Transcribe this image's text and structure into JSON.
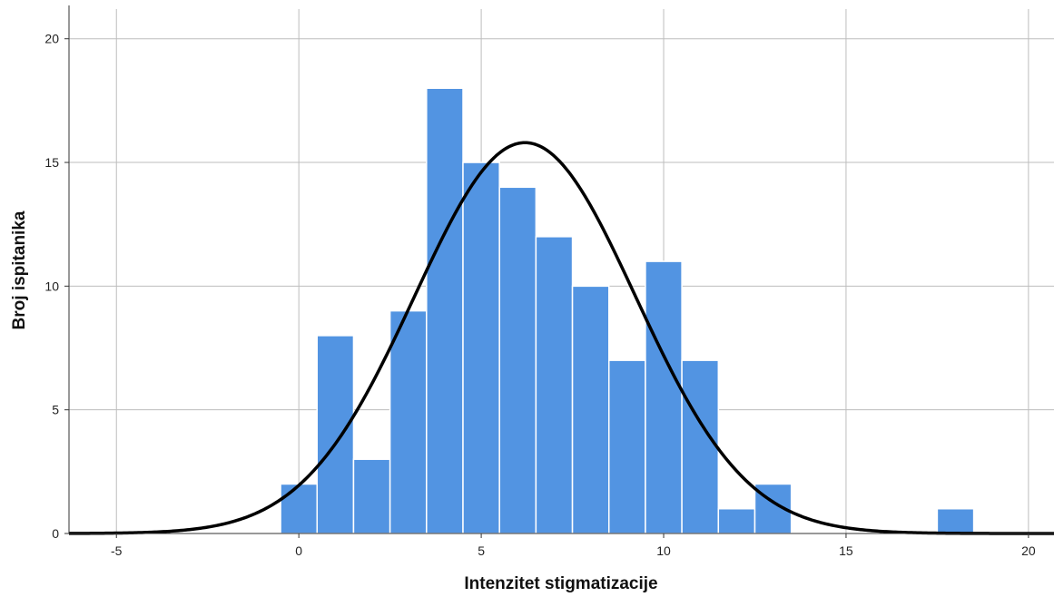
{
  "chart_data": {
    "type": "bar",
    "subtype": "histogram",
    "title": "",
    "xlabel": "Intenzitet stigmatizacije",
    "ylabel": "Broj ispitanika",
    "xlim": [
      -6.3,
      20.7
    ],
    "ylim": [
      0,
      21.2
    ],
    "x_ticks": [
      -5,
      0,
      5,
      10,
      15,
      20
    ],
    "y_ticks": [
      0,
      5,
      10,
      15,
      20
    ],
    "grid": true,
    "bar_color": "#5294e2",
    "bar_edge_color": "#ffffff",
    "curve_color": "#000000",
    "bin_width": 1,
    "bins": [
      {
        "x": 0,
        "count": 2
      },
      {
        "x": 1,
        "count": 8
      },
      {
        "x": 2,
        "count": 3
      },
      {
        "x": 3,
        "count": 9
      },
      {
        "x": 4,
        "count": 18
      },
      {
        "x": 5,
        "count": 15
      },
      {
        "x": 6,
        "count": 14
      },
      {
        "x": 7,
        "count": 12
      },
      {
        "x": 8,
        "count": 10
      },
      {
        "x": 9,
        "count": 7
      },
      {
        "x": 10,
        "count": 11
      },
      {
        "x": 11,
        "count": 7
      },
      {
        "x": 12,
        "count": 1
      },
      {
        "x": 13,
        "count": 2
      },
      {
        "x": 18,
        "count": 1
      }
    ],
    "normal_curve": {
      "mean": 6.2,
      "sd": 3.03,
      "n": 120
    }
  }
}
